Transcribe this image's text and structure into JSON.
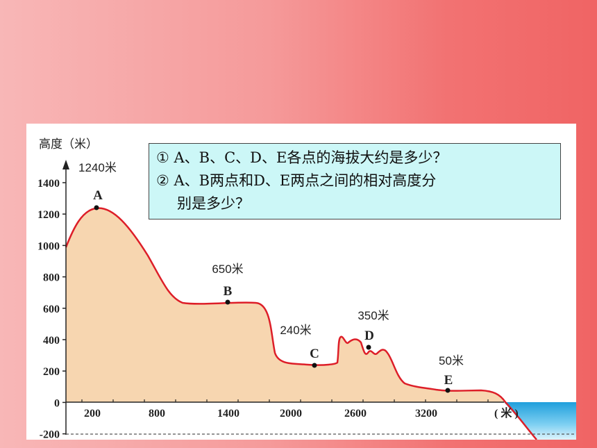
{
  "diagram": {
    "y_axis_title": "高度（米）",
    "y_ticks": [
      "1400",
      "1200",
      "1000",
      "800",
      "600",
      "400",
      "200",
      "0",
      "-200"
    ],
    "x_ticks": [
      "200",
      "800",
      "1400",
      "2000",
      "2600",
      "3200"
    ],
    "x_unit": "( 米 )",
    "points": [
      {
        "id": "A",
        "label": "A",
        "height_label": "1240米",
        "height": 1240
      },
      {
        "id": "B",
        "label": "B",
        "height_label": "650米",
        "height": 650
      },
      {
        "id": "C",
        "label": "C",
        "height_label": "240米",
        "height": 240
      },
      {
        "id": "D",
        "label": "D",
        "height_label": "350米",
        "height": 350
      },
      {
        "id": "E",
        "label": "E",
        "height_label": "50米",
        "height": 50
      }
    ],
    "colors": {
      "terrain_fill": "#f7d6b0",
      "terrain_line": "#dd1e28",
      "sea": "#2aa8e0",
      "question_bg": "#ccf7f7"
    }
  },
  "questions": {
    "q1": "① A、B、C、D、E各点的海拔大约是多少？",
    "q2_line1": "② A、B两点和D、E两点之间的相对高度分",
    "q2_line2": "别是多少？"
  }
}
